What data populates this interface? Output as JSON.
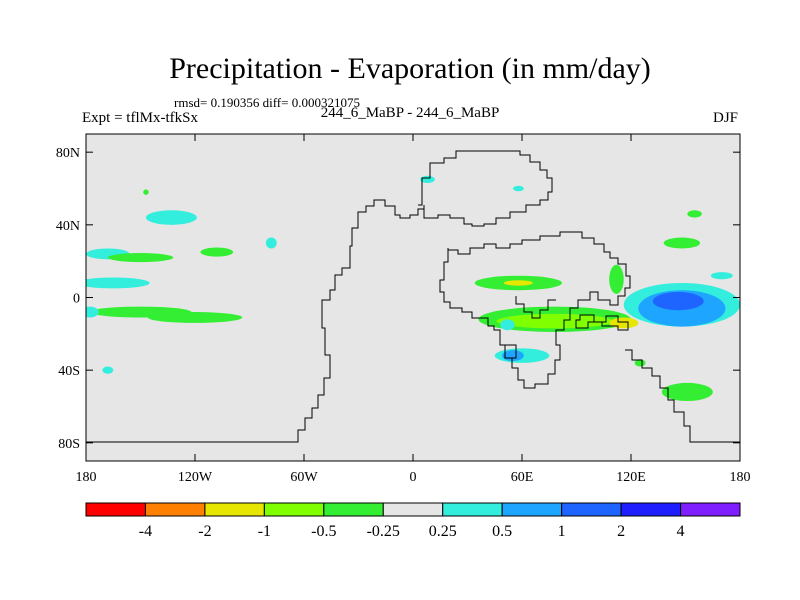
{
  "title": "Precipitation - Evaporation (in mm/day)",
  "stats": "rmsd= 0.190356 diff= 0.000321075",
  "left_label": "Expt = tflMx-tfkSx",
  "center_label": "244_6_MaBP - 244_6_MaBP",
  "right_label": "DJF",
  "map": {
    "background_color": "#e6e6e6",
    "lat_ticks": [
      {
        "value": 80,
        "label": "80N"
      },
      {
        "value": 40,
        "label": "40N"
      },
      {
        "value": 0,
        "label": "0"
      },
      {
        "value": -40,
        "label": "40S"
      },
      {
        "value": -80,
        "label": "80S"
      }
    ],
    "lon_ticks": [
      {
        "value": -180,
        "label": "180"
      },
      {
        "value": -120,
        "label": "120W"
      },
      {
        "value": -60,
        "label": "60W"
      },
      {
        "value": 0,
        "label": "0"
      },
      {
        "value": 60,
        "label": "60E"
      },
      {
        "value": 120,
        "label": "120E"
      },
      {
        "value": 180,
        "label": "180"
      }
    ]
  },
  "colorbar": {
    "colors": [
      "#ff0000",
      "#ff7f00",
      "#e6e600",
      "#80ff00",
      "#33ee33",
      "#e6e6e6",
      "#33eedd",
      "#1ea5ff",
      "#1e64ff",
      "#1e1eff",
      "#7f1eff"
    ],
    "labels": [
      "-4",
      "-2",
      "-1",
      "-0.5",
      "-0.25",
      "0.25",
      "0.5",
      "1",
      "2",
      "4"
    ]
  },
  "blobs": [
    {
      "color": "#33eedd",
      "lon": -165,
      "lat": 8,
      "rx": 20,
      "ry": 3
    },
    {
      "color": "#33ee33",
      "lon": -150,
      "lat": -8,
      "rx": 28,
      "ry": 3
    },
    {
      "color": "#33ee33",
      "lon": -120,
      "lat": -11,
      "rx": 26,
      "ry": 3
    },
    {
      "color": "#33eedd",
      "lon": -168,
      "lat": 24,
      "rx": 12,
      "ry": 3
    },
    {
      "color": "#33ee33",
      "lon": -150,
      "lat": 22,
      "rx": 18,
      "ry": 2.5
    },
    {
      "color": "#33ee33",
      "lon": -108,
      "lat": 25,
      "rx": 9,
      "ry": 2.5
    },
    {
      "color": "#33eedd",
      "lon": -133,
      "lat": 44,
      "rx": 14,
      "ry": 4
    },
    {
      "color": "#33ee33",
      "lon": -147,
      "lat": 58,
      "rx": 1.5,
      "ry": 1.5
    },
    {
      "color": "#33eedd",
      "lon": -78,
      "lat": 30,
      "rx": 3,
      "ry": 3
    },
    {
      "color": "#33eedd",
      "lon": -168,
      "lat": -40,
      "rx": 3,
      "ry": 2
    },
    {
      "color": "#33eedd",
      "lon": -178,
      "lat": -8,
      "rx": 5,
      "ry": 3
    },
    {
      "color": "#33eedd",
      "lon": 8,
      "lat": 65,
      "rx": 4,
      "ry": 2
    },
    {
      "color": "#33ee33",
      "lon": 58,
      "lat": 8,
      "rx": 24,
      "ry": 4
    },
    {
      "color": "#e6e600",
      "lon": 58,
      "lat": 8,
      "rx": 8,
      "ry": 1.5
    },
    {
      "color": "#33ee33",
      "lon": 78,
      "lat": -12,
      "rx": 42,
      "ry": 7
    },
    {
      "color": "#80ff00",
      "lon": 78,
      "lat": -13,
      "rx": 32,
      "ry": 4
    },
    {
      "color": "#e6e600",
      "lon": 116,
      "lat": -14,
      "rx": 8,
      "ry": 3
    },
    {
      "color": "#33eedd",
      "lon": 60,
      "lat": -32,
      "rx": 15,
      "ry": 4
    },
    {
      "color": "#1ea5ff",
      "lon": 55,
      "lat": -32,
      "rx": 6,
      "ry": 3
    },
    {
      "color": "#33eedd",
      "lon": 52,
      "lat": -15,
      "rx": 4,
      "ry": 3
    },
    {
      "color": "#33eedd",
      "lon": 148,
      "lat": -4,
      "rx": 32,
      "ry": 12
    },
    {
      "color": "#1ea5ff",
      "lon": 148,
      "lat": -6,
      "rx": 24,
      "ry": 10
    },
    {
      "color": "#1e64ff",
      "lon": 146,
      "lat": -2,
      "rx": 14,
      "ry": 5
    },
    {
      "color": "#33ee33",
      "lon": 151,
      "lat": -52,
      "rx": 14,
      "ry": 5
    },
    {
      "color": "#33ee33",
      "lon": 148,
      "lat": 30,
      "rx": 10,
      "ry": 3
    },
    {
      "color": "#33ee33",
      "lon": 112,
      "lat": 10,
      "rx": 4,
      "ry": 8
    },
    {
      "color": "#33eedd",
      "lon": 170,
      "lat": 12,
      "rx": 6,
      "ry": 2
    },
    {
      "color": "#33ee33",
      "lon": 125,
      "lat": -36,
      "rx": 3,
      "ry": 2
    },
    {
      "color": "#33ee33",
      "lon": 155,
      "lat": 46,
      "rx": 4,
      "ry": 2
    },
    {
      "color": "#33eedd",
      "lon": 58,
      "lat": 60,
      "rx": 3,
      "ry": 1.5
    }
  ]
}
